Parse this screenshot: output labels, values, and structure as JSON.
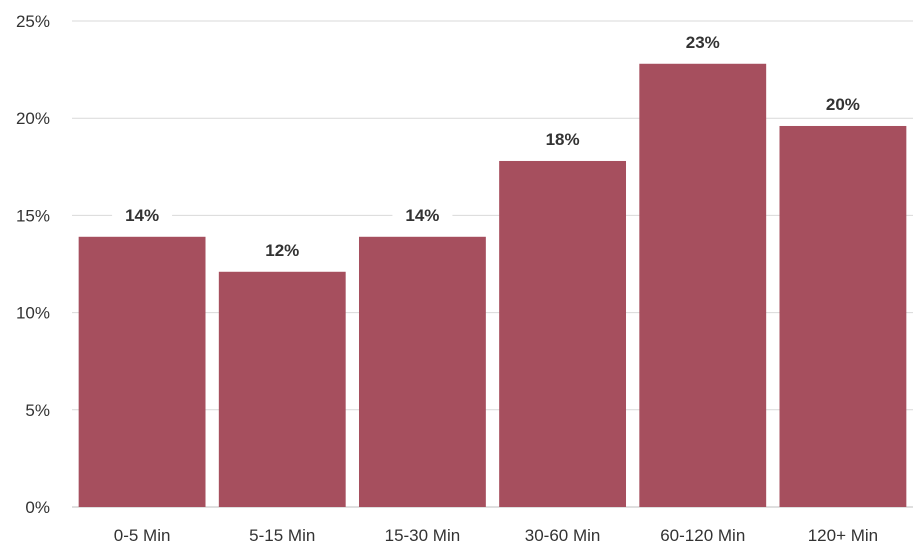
{
  "chart_data": {
    "type": "bar",
    "title": "",
    "xlabel": "",
    "ylabel": "",
    "categories": [
      "0-5 Min",
      "5-15 Min",
      "15-30 Min",
      "30-60 Min",
      "60-120 Min",
      "120+ Min"
    ],
    "values": [
      13.9,
      12.1,
      13.9,
      17.8,
      22.8,
      19.6
    ],
    "data_labels": [
      "14%",
      "12%",
      "14%",
      "18%",
      "23%",
      "20%"
    ],
    "ylim": [
      0,
      25
    ],
    "yticks": [
      0,
      5,
      10,
      15,
      20,
      25
    ],
    "ytick_labels": [
      "0%",
      "5%",
      "10%",
      "15%",
      "20%",
      "25%"
    ],
    "grid": true,
    "legend": "none",
    "bar_color": "#a64f5e"
  }
}
